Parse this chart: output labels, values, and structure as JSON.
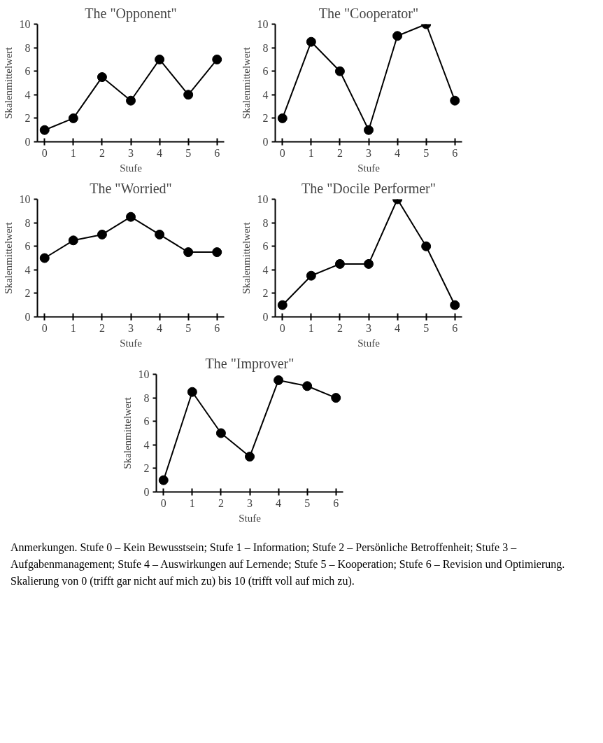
{
  "chart_data": [
    {
      "type": "line",
      "title": "The \"Opponent\"",
      "xlabel": "Stufe",
      "ylabel": "Skalenmittelwert",
      "x": [
        0,
        1,
        2,
        3,
        4,
        5,
        6
      ],
      "values": [
        1,
        2,
        5.5,
        3.5,
        7,
        4,
        7
      ],
      "color": "#000000",
      "marker": "circle",
      "line_style": "solid",
      "grid": false,
      "xlim": [
        -0.25,
        6.25
      ],
      "xticks": [
        0,
        1,
        2,
        3,
        4,
        5,
        6
      ],
      "ylim": [
        0,
        10
      ],
      "yticks": [
        0,
        2,
        4,
        6,
        8,
        10
      ]
    },
    {
      "type": "line",
      "title": "The \"Cooperator\"",
      "xlabel": "Stufe",
      "ylabel": "Skalenmittelwert",
      "x": [
        0,
        1,
        2,
        3,
        4,
        5,
        6
      ],
      "values": [
        2,
        8.5,
        6,
        1,
        9,
        10,
        3.5
      ],
      "color": "#000000",
      "marker": "circle",
      "line_style": "solid",
      "grid": false,
      "xlim": [
        -0.25,
        6.25
      ],
      "xticks": [
        0,
        1,
        2,
        3,
        4,
        5,
        6
      ],
      "ylim": [
        0,
        10
      ],
      "yticks": [
        0,
        2,
        4,
        6,
        8,
        10
      ]
    },
    {
      "type": "line",
      "title": "The \"Worried\"",
      "xlabel": "Stufe",
      "ylabel": "Skalenmittelwert",
      "x": [
        0,
        1,
        2,
        3,
        4,
        5,
        6
      ],
      "values": [
        5,
        6.5,
        7,
        8.5,
        7,
        5.5,
        5.5
      ],
      "color": "#000000",
      "marker": "circle",
      "line_style": "solid",
      "grid": false,
      "xlim": [
        -0.25,
        6.25
      ],
      "xticks": [
        0,
        1,
        2,
        3,
        4,
        5,
        6
      ],
      "ylim": [
        0,
        10
      ],
      "yticks": [
        0,
        2,
        4,
        6,
        8,
        10
      ]
    },
    {
      "type": "line",
      "title": "The \"Docile Performer\"",
      "xlabel": "Stufe",
      "ylabel": "Skalenmittelwert",
      "x": [
        0,
        1,
        2,
        3,
        4,
        5,
        6
      ],
      "values": [
        1,
        3.5,
        4.5,
        4.5,
        10,
        6,
        1
      ],
      "color": "#000000",
      "marker": "circle",
      "line_style": "solid",
      "grid": false,
      "xlim": [
        -0.25,
        6.25
      ],
      "xticks": [
        0,
        1,
        2,
        3,
        4,
        5,
        6
      ],
      "ylim": [
        0,
        10
      ],
      "yticks": [
        0,
        2,
        4,
        6,
        8,
        10
      ]
    },
    {
      "type": "line",
      "title": "The \"Improver\"",
      "xlabel": "Stufe",
      "ylabel": "Skalenmittelwert",
      "x": [
        0,
        1,
        2,
        3,
        4,
        5,
        6
      ],
      "values": [
        1,
        8.5,
        5,
        3,
        9.5,
        9,
        8
      ],
      "color": "#000000",
      "marker": "circle",
      "line_style": "solid",
      "grid": false,
      "xlim": [
        -0.25,
        6.25
      ],
      "xticks": [
        0,
        1,
        2,
        3,
        4,
        5,
        6
      ],
      "ylim": [
        0,
        10
      ],
      "yticks": [
        0,
        2,
        4,
        6,
        8,
        10
      ],
      "annotations": [
        "Anmerkungen. Stufe 0 – Kein Bewusstsein; Stufe 1 – Information; Stufe 2 – Persönliche Betroffenheit; Stufe 3 – Aufgabenmanagement; Stufe 4 – Auswirkungen auf Lernende; Stufe 5 – Kooperation; Stufe 6 – Revision und Optimierung. Skalierung von 0 (trifft gar nicht auf mich zu) bis 10 (trifft voll auf mich zu)."
      ]
    }
  ]
}
